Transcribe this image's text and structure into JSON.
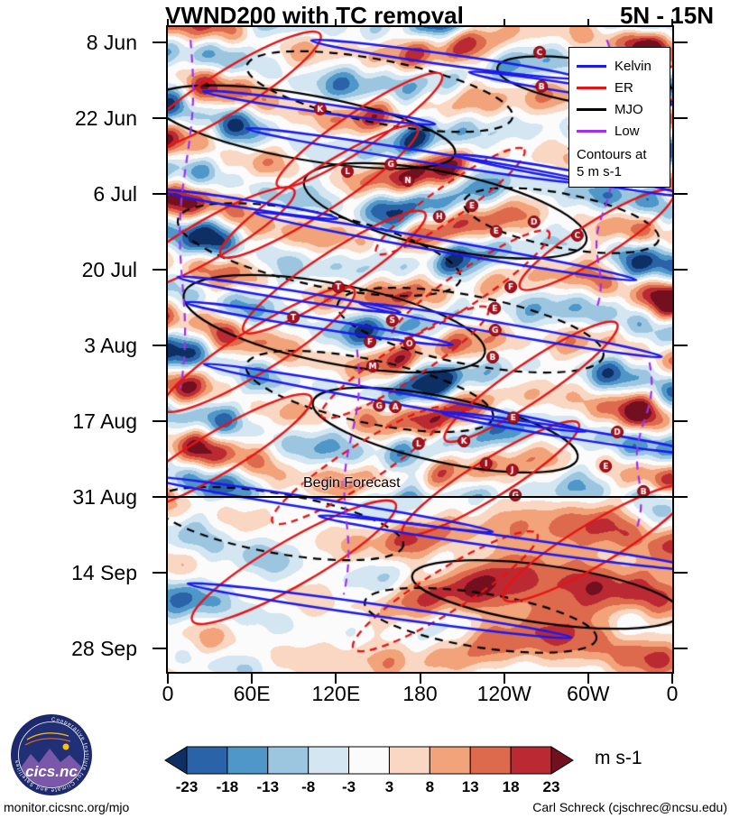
{
  "header": {
    "title": "VWND200 with TC removal",
    "lat_band": "5N - 15N"
  },
  "chart_data": {
    "type": "heatmap",
    "title": "VWND200 with TC removal",
    "subtitle": "5N - 15N",
    "xlabel": "",
    "ylabel": "",
    "x_ticks": [
      "0",
      "60E",
      "120E",
      "180",
      "120W",
      "60W",
      "0"
    ],
    "y_ticks": [
      "8 Jun",
      "22 Jun",
      "6 Jul",
      "20 Jul",
      "3 Aug",
      "17 Aug",
      "31 Aug",
      "14 Sep",
      "28 Sep"
    ],
    "annotation": "Begin Forecast",
    "legend": {
      "entries": [
        {
          "label": "Kelvin",
          "color": "#1a1af0"
        },
        {
          "label": "ER",
          "color": "#e81414"
        },
        {
          "label": "MJO",
          "color": "#000000"
        },
        {
          "label": "Low",
          "color": "#a030f0"
        }
      ],
      "note_line1": "Contours at",
      "note_line2": "5 m s-1"
    },
    "colorbar": {
      "labels": [
        "-23",
        "-18",
        "-13",
        "-8",
        "-3",
        "3",
        "8",
        "13",
        "18",
        "23"
      ],
      "colors": [
        "#0d2f63",
        "#2a63a8",
        "#4f97c8",
        "#9cc6e0",
        "#d3e6f2",
        "#fbfbfb",
        "#f9d7c2",
        "#f2a379",
        "#dd6a4c",
        "#bb2a33",
        "#73101f"
      ],
      "units": "m s-1"
    },
    "storm_markers": [
      {
        "letter": "C",
        "x": 0.737,
        "y": 0.039
      },
      {
        "letter": "B",
        "x": 0.741,
        "y": 0.092
      },
      {
        "letter": "K",
        "x": 0.302,
        "y": 0.127
      },
      {
        "letter": "G",
        "x": 0.442,
        "y": 0.213
      },
      {
        "letter": "L",
        "x": 0.356,
        "y": 0.224
      },
      {
        "letter": "N",
        "x": 0.476,
        "y": 0.238
      },
      {
        "letter": "E",
        "x": 0.603,
        "y": 0.277
      },
      {
        "letter": "H",
        "x": 0.538,
        "y": 0.294
      },
      {
        "letter": "D",
        "x": 0.726,
        "y": 0.302
      },
      {
        "letter": "E",
        "x": 0.651,
        "y": 0.317
      },
      {
        "letter": "C",
        "x": 0.812,
        "y": 0.323
      },
      {
        "letter": "T",
        "x": 0.338,
        "y": 0.403
      },
      {
        "letter": "F",
        "x": 0.68,
        "y": 0.403
      },
      {
        "letter": "E",
        "x": 0.648,
        "y": 0.436
      },
      {
        "letter": "T",
        "x": 0.249,
        "y": 0.45
      },
      {
        "letter": "S",
        "x": 0.445,
        "y": 0.455
      },
      {
        "letter": "G",
        "x": 0.649,
        "y": 0.47
      },
      {
        "letter": "F",
        "x": 0.401,
        "y": 0.488
      },
      {
        "letter": "O",
        "x": 0.479,
        "y": 0.491
      },
      {
        "letter": "B",
        "x": 0.644,
        "y": 0.512
      },
      {
        "letter": "M",
        "x": 0.406,
        "y": 0.526
      },
      {
        "letter": "G",
        "x": 0.419,
        "y": 0.587
      },
      {
        "letter": "A",
        "x": 0.451,
        "y": 0.589
      },
      {
        "letter": "E",
        "x": 0.685,
        "y": 0.606
      },
      {
        "letter": "D",
        "x": 0.891,
        "y": 0.628
      },
      {
        "letter": "K",
        "x": 0.587,
        "y": 0.642
      },
      {
        "letter": "L",
        "x": 0.497,
        "y": 0.646
      },
      {
        "letter": "I",
        "x": 0.631,
        "y": 0.677
      },
      {
        "letter": "E",
        "x": 0.868,
        "y": 0.681
      },
      {
        "letter": "J",
        "x": 0.683,
        "y": 0.687
      },
      {
        "letter": "B",
        "x": 0.943,
        "y": 0.72
      },
      {
        "letter": "G",
        "x": 0.689,
        "y": 0.726
      }
    ],
    "waves": {
      "kelvin": [
        [
          0.55,
          0.05,
          300,
          12,
          8
        ],
        [
          0.8,
          0.095,
          230,
          10,
          9
        ],
        [
          0.3,
          0.125,
          260,
          10,
          8
        ],
        [
          0.5,
          0.2,
          390,
          12,
          9
        ],
        [
          0.16,
          0.275,
          200,
          9,
          9
        ],
        [
          0.8,
          0.23,
          260,
          10,
          10
        ],
        [
          0.55,
          0.34,
          430,
          13,
          10
        ],
        [
          0.24,
          0.415,
          250,
          10,
          9
        ],
        [
          0.3,
          0.46,
          300,
          11,
          9
        ],
        [
          0.68,
          0.47,
          340,
          12,
          10
        ],
        [
          0.45,
          0.575,
          430,
          13,
          10
        ],
        [
          0.8,
          0.63,
          290,
          11,
          9
        ],
        [
          0.3,
          0.74,
          390,
          12,
          9
        ],
        [
          0.68,
          0.8,
          430,
          13,
          8
        ],
        [
          0.42,
          0.905,
          430,
          13,
          8
        ]
      ],
      "er": [
        [
          0.12,
          0.1,
          240,
          46,
          -32,
          0
        ],
        [
          0.38,
          0.16,
          220,
          40,
          -34,
          0
        ],
        [
          0.3,
          0.255,
          260,
          46,
          -33,
          0
        ],
        [
          0.56,
          0.27,
          200,
          36,
          -35,
          1
        ],
        [
          0.08,
          0.33,
          220,
          44,
          -30,
          0
        ],
        [
          0.33,
          0.38,
          240,
          44,
          -33,
          0
        ],
        [
          0.6,
          0.4,
          210,
          38,
          -34,
          1
        ],
        [
          0.85,
          0.33,
          200,
          40,
          -32,
          0
        ],
        [
          0.18,
          0.5,
          250,
          48,
          -32,
          0
        ],
        [
          0.47,
          0.52,
          220,
          40,
          -33,
          1
        ],
        [
          0.72,
          0.55,
          230,
          42,
          -34,
          0
        ],
        [
          0.1,
          0.66,
          240,
          46,
          -31,
          0
        ],
        [
          0.38,
          0.68,
          230,
          42,
          -33,
          1
        ],
        [
          0.64,
          0.7,
          230,
          42,
          -32,
          0
        ],
        [
          0.25,
          0.83,
          260,
          50,
          -30,
          0
        ],
        [
          0.55,
          0.875,
          240,
          46,
          -32,
          1
        ],
        [
          0.85,
          0.8,
          240,
          46,
          -31,
          0
        ],
        [
          0.93,
          0.12,
          180,
          36,
          -33,
          1
        ]
      ],
      "mjo_solid": [
        [
          0.27,
          0.155,
          340,
          72,
          10
        ],
        [
          0.55,
          0.285,
          320,
          84,
          12
        ],
        [
          0.33,
          0.46,
          340,
          88,
          11
        ],
        [
          0.55,
          0.625,
          300,
          72,
          12
        ],
        [
          0.83,
          0.085,
          200,
          48,
          9
        ],
        [
          0.75,
          0.88,
          300,
          64,
          8
        ]
      ],
      "mjo_dashed": [
        [
          0.42,
          0.1,
          300,
          70,
          11
        ],
        [
          0.3,
          0.345,
          320,
          80,
          12
        ],
        [
          0.6,
          0.47,
          300,
          76,
          11
        ],
        [
          0.4,
          0.565,
          280,
          70,
          12
        ],
        [
          0.22,
          0.77,
          280,
          66,
          10
        ],
        [
          0.62,
          0.92,
          260,
          60,
          9
        ],
        [
          0.78,
          0.3,
          220,
          60,
          11
        ]
      ],
      "low": [
        [
          0.045,
          0.02,
          0.022,
          0.56
        ],
        [
          0.375,
          0.5,
          0.345,
          0.88
        ],
        [
          0.875,
          0.2,
          0.845,
          0.44
        ],
        [
          0.955,
          0.52,
          0.925,
          0.78
        ],
        [
          0.87,
          0.02,
          0.855,
          0.13
        ]
      ]
    }
  },
  "footer": {
    "left": "monitor.cicsnc.org/mjo",
    "right": "Carl Schreck (cjschrec@ncsu.edu)"
  },
  "logo": {
    "text": "cics.nc",
    "ring_text": "Cooperative Institute for Climate and Satellites"
  }
}
